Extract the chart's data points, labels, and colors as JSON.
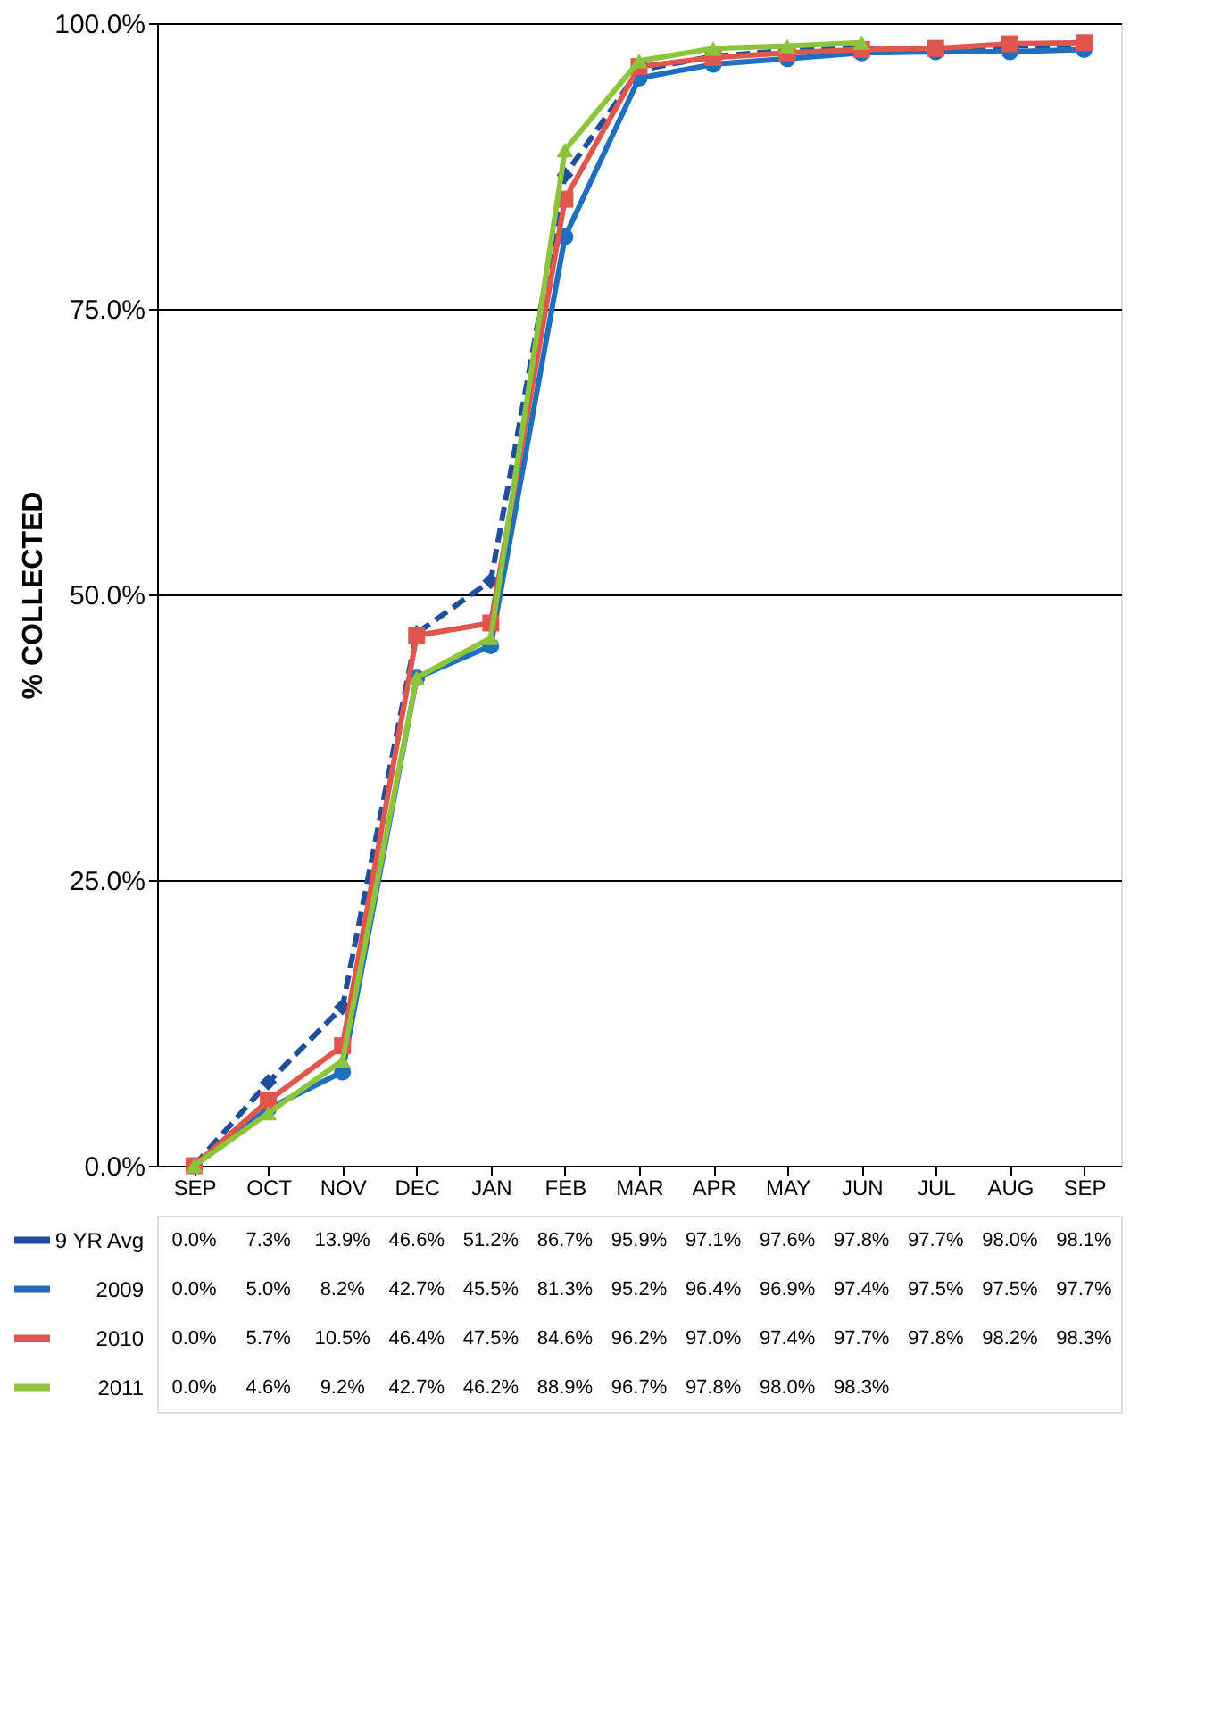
{
  "chart_data": {
    "type": "line",
    "ylabel": "% COLLECTED",
    "categories": [
      "SEP",
      "OCT",
      "NOV",
      "DEC",
      "JAN",
      "FEB",
      "MAR",
      "APR",
      "MAY",
      "JUN",
      "JUL",
      "AUG",
      "SEP"
    ],
    "series": [
      {
        "name": "9 YR Avg",
        "color": "#1f4e9c",
        "marker": "diamond",
        "line_style": "dashed",
        "values": [
          0.0,
          7.3,
          13.9,
          46.6,
          51.2,
          86.7,
          95.9,
          97.1,
          97.6,
          97.8,
          97.7,
          98.0,
          98.1
        ],
        "value_labels": [
          "0.0%",
          "7.3%",
          "13.9%",
          "46.6%",
          "51.2%",
          "86.7%",
          "95.9%",
          "97.1%",
          "97.6%",
          "97.8%",
          "97.7%",
          "98.0%",
          "98.1%"
        ]
      },
      {
        "name": "2009",
        "color": "#1f6fc0",
        "marker": "circle",
        "line_style": "solid",
        "values": [
          0.0,
          5.0,
          8.2,
          42.7,
          45.5,
          81.3,
          95.2,
          96.4,
          96.9,
          97.4,
          97.5,
          97.5,
          97.7
        ],
        "value_labels": [
          "0.0%",
          "5.0%",
          "8.2%",
          "42.7%",
          "45.5%",
          "81.3%",
          "95.2%",
          "96.4%",
          "96.9%",
          "97.4%",
          "97.5%",
          "97.5%",
          "97.7%"
        ]
      },
      {
        "name": "2010",
        "color": "#e0554c",
        "marker": "square",
        "line_style": "solid",
        "values": [
          0.0,
          5.7,
          10.5,
          46.4,
          47.5,
          84.6,
          96.2,
          97.0,
          97.4,
          97.7,
          97.8,
          98.2,
          98.3
        ],
        "value_labels": [
          "0.0%",
          "5.7%",
          "10.5%",
          "46.4%",
          "47.5%",
          "84.6%",
          "96.2%",
          "97.0%",
          "97.4%",
          "97.7%",
          "97.8%",
          "98.2%",
          "98.3%"
        ]
      },
      {
        "name": "2011",
        "color": "#8cc43c",
        "marker": "triangle",
        "line_style": "solid",
        "values": [
          0.0,
          4.6,
          9.2,
          42.7,
          46.2,
          88.9,
          96.7,
          97.8,
          98.0,
          98.3,
          null,
          null,
          null
        ],
        "value_labels": [
          "0.0%",
          "4.6%",
          "9.2%",
          "42.7%",
          "46.2%",
          "88.9%",
          "96.7%",
          "97.8%",
          "98.0%",
          "98.3%",
          null,
          null,
          null
        ]
      }
    ],
    "ylim": [
      0,
      100
    ],
    "yticks": [
      {
        "value": 0,
        "label": "0.0%"
      },
      {
        "value": 25,
        "label": "25.0%"
      },
      {
        "value": 50,
        "label": "50.0%"
      },
      {
        "value": 75,
        "label": "75.0%"
      },
      {
        "value": 100,
        "label": "100.0%"
      }
    ],
    "grid": "y",
    "legend": "bottom"
  }
}
